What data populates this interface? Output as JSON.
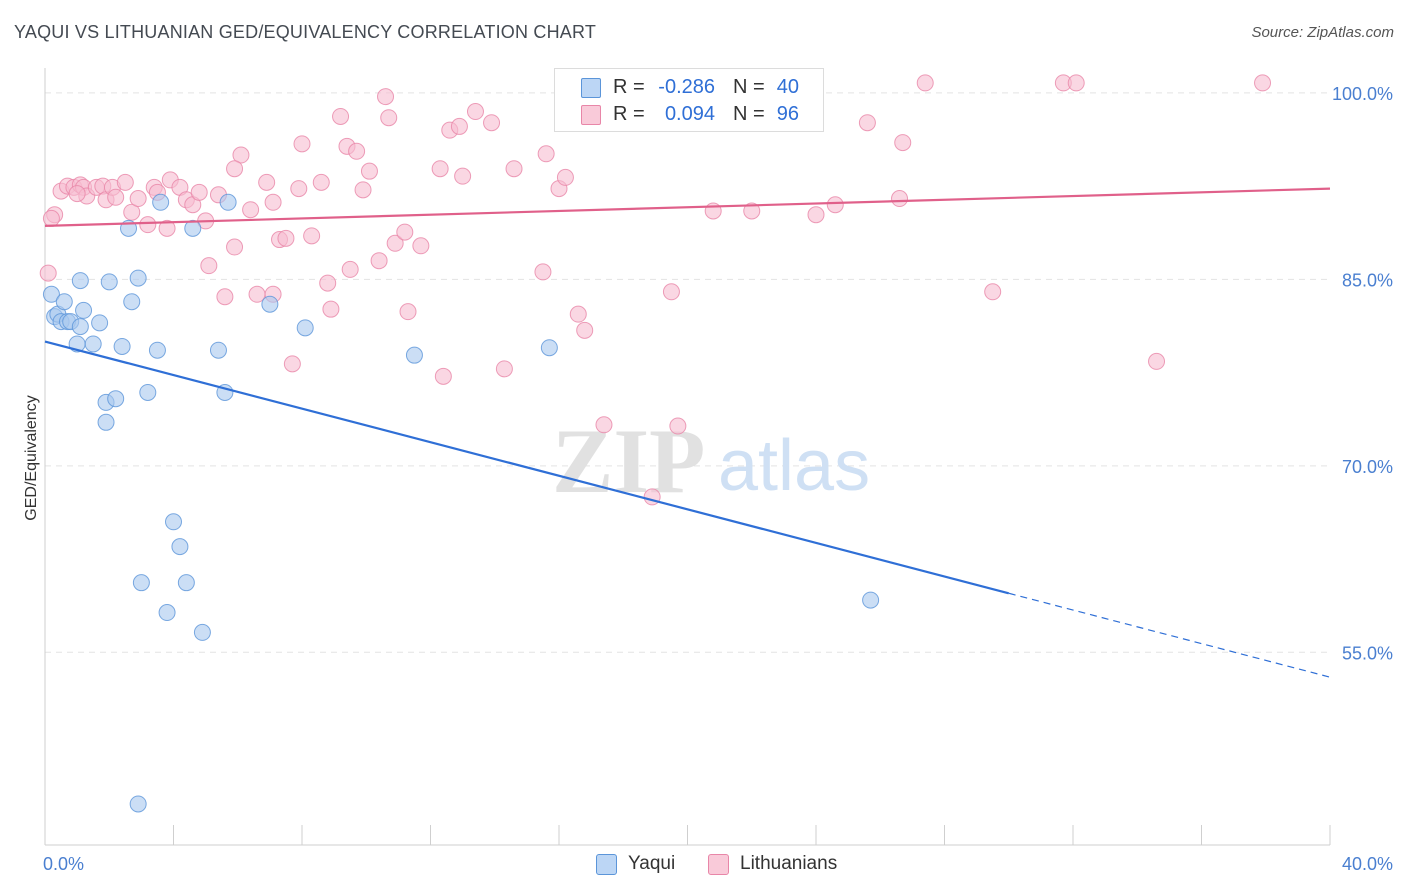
{
  "title": "YAQUI VS LITHUANIAN GED/EQUIVALENCY CORRELATION CHART",
  "source": "Source: ZipAtlas.com",
  "watermark": {
    "zip": "ZIP",
    "atlas": "atlas"
  },
  "colors": {
    "yaqui_fill": "#a9c8ef",
    "yaqui_stroke": "#5b95d9",
    "yaqui_line": "#2f6fd6",
    "lith_fill": "#f7bcd0",
    "lith_stroke": "#e886a8",
    "lith_line": "#e0608a",
    "tick_label": "#4a7fd0",
    "grid": "#e3e3e3"
  },
  "stats": {
    "yaqui": {
      "r_label": "R =",
      "r_value": "-0.286",
      "n_label": "N =",
      "n_value": "40"
    },
    "lith": {
      "r_label": "R =",
      "r_value": "0.094",
      "n_label": "N =",
      "n_value": "96"
    }
  },
  "legend": {
    "yaqui": "Yaqui",
    "lith": "Lithuanians"
  },
  "chart_data": {
    "type": "scatter",
    "title": "YAQUI VS LITHUANIAN GED/EQUIVALENCY CORRELATION CHART",
    "xlabel": "",
    "ylabel": "GED/Equivalency",
    "xlim": [
      0,
      40
    ],
    "ylim": [
      39.5,
      102
    ],
    "x_tick_labels": [
      {
        "value": 0,
        "label": "0.0%"
      },
      {
        "value": 40,
        "label": "40.0%"
      }
    ],
    "y_tick_labels": [
      {
        "value": 100,
        "label": "100.0%"
      },
      {
        "value": 85,
        "label": "85.0%"
      },
      {
        "value": 70,
        "label": "70.0%"
      },
      {
        "value": 55,
        "label": "55.0%"
      }
    ],
    "grid": "horizontal dashed",
    "legend_position": "bottom-center",
    "series": [
      {
        "name": "Yaqui",
        "points": [
          [
            0.2,
            83.8
          ],
          [
            0.3,
            82.0
          ],
          [
            0.4,
            82.2
          ],
          [
            0.5,
            81.6
          ],
          [
            0.6,
            83.2
          ],
          [
            0.7,
            81.6
          ],
          [
            0.8,
            81.6
          ],
          [
            1.0,
            79.8
          ],
          [
            1.1,
            84.9
          ],
          [
            1.1,
            81.2
          ],
          [
            1.2,
            82.5
          ],
          [
            1.5,
            79.8
          ],
          [
            1.7,
            81.5
          ],
          [
            2.0,
            84.8
          ],
          [
            1.9,
            75.1
          ],
          [
            1.9,
            73.5
          ],
          [
            2.2,
            75.4
          ],
          [
            2.4,
            79.6
          ],
          [
            2.6,
            89.1
          ],
          [
            2.7,
            83.2
          ],
          [
            2.9,
            85.1
          ],
          [
            3.2,
            75.9
          ],
          [
            3.5,
            79.3
          ],
          [
            3.6,
            91.2
          ],
          [
            4.0,
            65.5
          ],
          [
            4.2,
            63.5
          ],
          [
            4.4,
            60.6
          ],
          [
            3.8,
            58.2
          ],
          [
            4.6,
            89.1
          ],
          [
            4.9,
            56.6
          ],
          [
            5.4,
            79.3
          ],
          [
            5.6,
            75.9
          ],
          [
            5.7,
            91.2
          ],
          [
            7.0,
            83.0
          ],
          [
            8.1,
            81.1
          ],
          [
            11.5,
            78.9
          ],
          [
            15.7,
            79.5
          ],
          [
            3.0,
            60.6
          ],
          [
            25.7,
            59.2
          ],
          [
            2.9,
            42.8
          ]
        ],
        "trend": {
          "x0": 0,
          "y0": 80.0,
          "x1": 40,
          "y1": 53.0,
          "solid_until_x": 30
        }
      },
      {
        "name": "Lithuanians",
        "points": [
          [
            0.1,
            85.5
          ],
          [
            0.3,
            90.2
          ],
          [
            0.5,
            92.1
          ],
          [
            0.7,
            92.5
          ],
          [
            0.9,
            92.4
          ],
          [
            1.1,
            92.6
          ],
          [
            1.2,
            92.4
          ],
          [
            1.3,
            91.7
          ],
          [
            1.6,
            92.4
          ],
          [
            1.8,
            92.5
          ],
          [
            1.9,
            91.4
          ],
          [
            2.1,
            92.4
          ],
          [
            2.2,
            91.6
          ],
          [
            2.5,
            92.8
          ],
          [
            2.7,
            90.4
          ],
          [
            2.9,
            91.5
          ],
          [
            3.2,
            89.4
          ],
          [
            3.4,
            92.4
          ],
          [
            3.5,
            92.0
          ],
          [
            3.8,
            89.1
          ],
          [
            3.9,
            93.0
          ],
          [
            4.2,
            92.4
          ],
          [
            4.4,
            91.4
          ],
          [
            4.6,
            91.0
          ],
          [
            4.8,
            92.0
          ],
          [
            5.0,
            89.7
          ],
          [
            5.1,
            86.1
          ],
          [
            5.4,
            91.8
          ],
          [
            5.6,
            83.6
          ],
          [
            5.9,
            87.6
          ],
          [
            6.1,
            95.0
          ],
          [
            5.9,
            93.9
          ],
          [
            6.4,
            90.6
          ],
          [
            6.6,
            83.8
          ],
          [
            6.9,
            92.8
          ],
          [
            7.1,
            91.2
          ],
          [
            7.1,
            83.8
          ],
          [
            7.3,
            88.2
          ],
          [
            7.5,
            88.3
          ],
          [
            7.7,
            78.2
          ],
          [
            7.9,
            92.3
          ],
          [
            8.0,
            95.9
          ],
          [
            8.3,
            88.5
          ],
          [
            8.6,
            92.8
          ],
          [
            8.8,
            84.7
          ],
          [
            8.9,
            82.6
          ],
          [
            9.2,
            98.1
          ],
          [
            9.4,
            95.7
          ],
          [
            9.5,
            85.8
          ],
          [
            9.7,
            95.3
          ],
          [
            9.9,
            92.2
          ],
          [
            10.1,
            93.7
          ],
          [
            10.4,
            86.5
          ],
          [
            10.6,
            99.7
          ],
          [
            10.7,
            98.0
          ],
          [
            10.9,
            87.9
          ],
          [
            11.2,
            88.8
          ],
          [
            11.3,
            82.4
          ],
          [
            11.7,
            87.7
          ],
          [
            12.3,
            93.9
          ],
          [
            12.4,
            77.2
          ],
          [
            12.6,
            97.0
          ],
          [
            12.9,
            97.3
          ],
          [
            13.0,
            93.3
          ],
          [
            13.4,
            98.5
          ],
          [
            13.9,
            97.6
          ],
          [
            14.3,
            77.8
          ],
          [
            14.6,
            93.9
          ],
          [
            15.5,
            85.6
          ],
          [
            15.6,
            95.1
          ],
          [
            16.0,
            92.3
          ],
          [
            16.2,
            93.2
          ],
          [
            16.6,
            82.2
          ],
          [
            16.8,
            80.9
          ],
          [
            17.4,
            73.3
          ],
          [
            18.9,
            67.5
          ],
          [
            19.5,
            84.0
          ],
          [
            19.7,
            73.2
          ],
          [
            20.8,
            90.5
          ],
          [
            22.0,
            90.5
          ],
          [
            22.9,
            100.6
          ],
          [
            22.1,
            99.8
          ],
          [
            23.7,
            100.8
          ],
          [
            24.6,
            91.0
          ],
          [
            25.6,
            97.6
          ],
          [
            26.6,
            91.5
          ],
          [
            26.7,
            96.0
          ],
          [
            27.4,
            100.8
          ],
          [
            29.5,
            84.0
          ],
          [
            31.7,
            100.8
          ],
          [
            32.1,
            100.8
          ],
          [
            34.6,
            78.4
          ],
          [
            37.9,
            100.8
          ],
          [
            0.2,
            89.9
          ],
          [
            1.0,
            91.9
          ],
          [
            24.0,
            90.2
          ]
        ],
        "trend": {
          "x0": 0,
          "y0": 89.3,
          "x1": 40,
          "y1": 92.3,
          "solid_until_x": 40
        }
      }
    ]
  }
}
